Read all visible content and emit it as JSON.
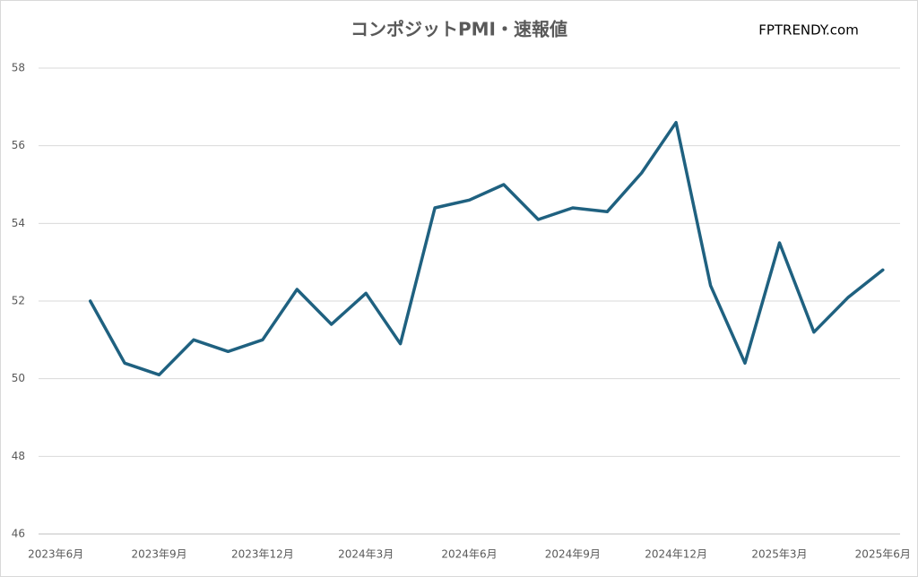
{
  "chart_data": {
    "type": "line",
    "title": "コンポジットPMI・速報値",
    "watermark": "FPTRENDY.com",
    "categories": [
      "2023年6月",
      null,
      null,
      "2023年9月",
      null,
      null,
      "2023年12月",
      null,
      null,
      "2024年3月",
      null,
      null,
      "2024年6月",
      null,
      null,
      "2024年9月",
      null,
      null,
      "2024年12月",
      null,
      null,
      "2025年3月",
      null,
      null,
      "2025年6月"
    ],
    "values": [
      null,
      52.0,
      50.4,
      50.1,
      51.0,
      50.7,
      51.0,
      52.3,
      51.4,
      52.2,
      50.9,
      54.4,
      54.6,
      55.0,
      54.1,
      54.4,
      54.3,
      55.3,
      56.6,
      52.4,
      50.4,
      53.5,
      51.2,
      52.1,
      52.8
    ],
    "color": "#1f6180",
    "ylim": [
      46,
      58
    ],
    "yticks": [
      46,
      48,
      50,
      52,
      54,
      56,
      58
    ],
    "grid": true
  }
}
